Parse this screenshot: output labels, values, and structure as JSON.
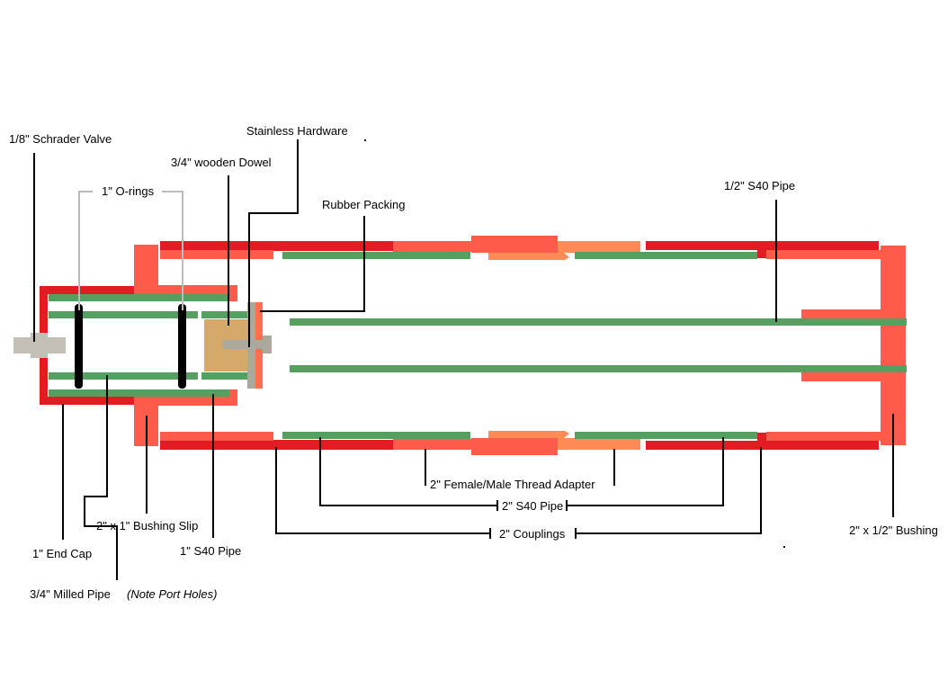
{
  "colors": {
    "end_cap_red": "#E31B23",
    "bushing_coral": "#FF5B4A",
    "adapter_orange": "#FF8A55",
    "pipe_green": "#55A060",
    "hardware_grey": "#ABA89C",
    "valve_grey": "#C4C0B6",
    "dowel_tan": "#D4A96A",
    "oring_black": "#000000",
    "leader_grey": "#BBBBBB"
  },
  "labels": {
    "schrader_valve": "1/8\" Schrader Valve",
    "o_rings": "1\" O-rings",
    "wooden_dowel": "3/4\" wooden Dowel",
    "stainless_hardware": "Stainless Hardware",
    "rubber_packing": "Rubber Packing",
    "half_s40_pipe": "1/2\" S40 Pipe",
    "end_cap": "1\" End Cap",
    "milled_pipe": "3/4\" Milled Pipe",
    "milled_pipe_note": "(Note Port Holes)",
    "bushing_slip": "2\" x 1\" Bushing Slip",
    "one_s40_pipe": "1\" S40 Pipe",
    "thread_adapter": "2\" Female/Male Thread Adapter",
    "two_s40_pipe": "2\" S40 Pipe",
    "couplings": "2\" Couplings",
    "half_bushing": "2\" x 1/2\" Bushing"
  }
}
